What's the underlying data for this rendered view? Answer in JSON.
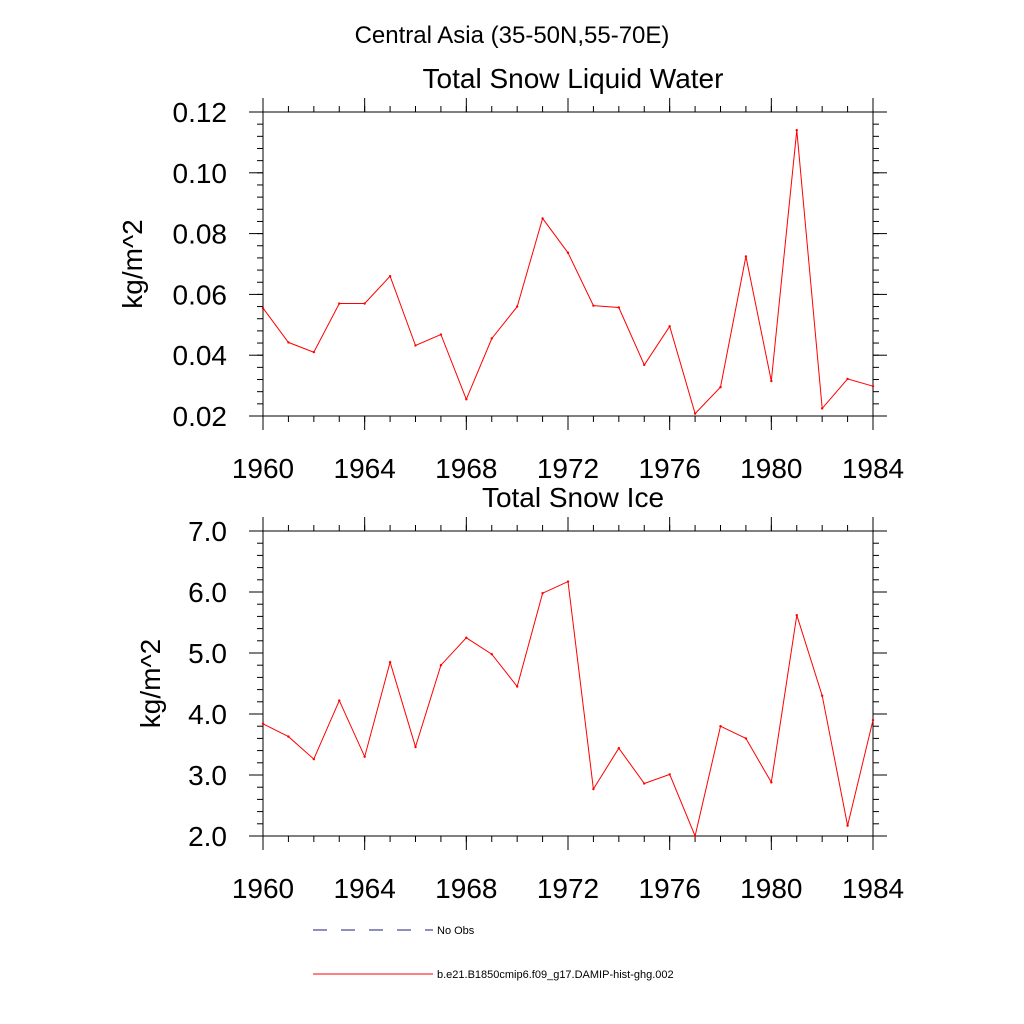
{
  "suptitle": "Central Asia (35-50N,55-70E)",
  "chart_data": [
    {
      "type": "line",
      "title": "Total Snow Liquid Water",
      "xlabel": "",
      "ylabel": "kg/m^2",
      "xlim": [
        1960,
        1984
      ],
      "ylim": [
        0.02,
        0.12
      ],
      "x_ticks": [
        1960,
        1964,
        1968,
        1972,
        1976,
        1980,
        1984
      ],
      "x_tick_labels": [
        "1960",
        "1964",
        "1968",
        "1972",
        "1976",
        "1980",
        "1984"
      ],
      "y_ticks": [
        0.02,
        0.04,
        0.06,
        0.08,
        0.1,
        0.12
      ],
      "y_tick_labels": [
        "0.02",
        "0.04",
        "0.06",
        "0.08",
        "0.10",
        "0.12"
      ],
      "x_minor_step": 1,
      "y_minor_step": 0.004,
      "x": [
        1960,
        1961,
        1962,
        1963,
        1964,
        1965,
        1966,
        1967,
        1968,
        1969,
        1970,
        1971,
        1972,
        1973,
        1974,
        1975,
        1976,
        1977,
        1978,
        1979,
        1980,
        1981,
        1982,
        1983,
        1984
      ],
      "series": [
        {
          "name": "b.e21.B1850cmip6.f09_g17.DAMIP-hist-ghg.002",
          "color": "#ff0000",
          "values": [
            0.0555,
            0.0442,
            0.041,
            0.057,
            0.057,
            0.066,
            0.0432,
            0.0468,
            0.0255,
            0.0455,
            0.056,
            0.085,
            0.0737,
            0.0563,
            0.0557,
            0.0368,
            0.0495,
            0.0208,
            0.0295,
            0.0725,
            0.0315,
            0.114,
            0.0225,
            0.0322,
            0.0298
          ]
        }
      ]
    },
    {
      "type": "line",
      "title": "Total Snow Ice",
      "xlabel": "",
      "ylabel": "kg/m^2",
      "xlim": [
        1960,
        1984
      ],
      "ylim": [
        2.0,
        7.0
      ],
      "x_ticks": [
        1960,
        1964,
        1968,
        1972,
        1976,
        1980,
        1984
      ],
      "x_tick_labels": [
        "1960",
        "1964",
        "1968",
        "1972",
        "1976",
        "1980",
        "1984"
      ],
      "y_ticks": [
        2.0,
        3.0,
        4.0,
        5.0,
        6.0,
        7.0
      ],
      "y_tick_labels": [
        "2.0",
        "3.0",
        "4.0",
        "5.0",
        "6.0",
        "7.0"
      ],
      "x_minor_step": 1,
      "y_minor_step": 0.2,
      "x": [
        1960,
        1961,
        1962,
        1963,
        1964,
        1965,
        1966,
        1967,
        1968,
        1969,
        1970,
        1971,
        1972,
        1973,
        1974,
        1975,
        1976,
        1977,
        1978,
        1979,
        1980,
        1981,
        1982,
        1983,
        1984
      ],
      "series": [
        {
          "name": "b.e21.B1850cmip6.f09_g17.DAMIP-hist-ghg.002",
          "color": "#ff0000",
          "values": [
            3.84,
            3.63,
            3.26,
            4.22,
            3.3,
            4.85,
            3.46,
            4.8,
            5.25,
            4.98,
            4.45,
            5.98,
            6.17,
            2.77,
            3.44,
            2.86,
            3.01,
            2.0,
            3.8,
            3.6,
            2.88,
            5.62,
            4.3,
            2.17,
            3.9
          ]
        }
      ]
    }
  ],
  "legend": [
    {
      "label": "No Obs",
      "color": "#1f1f7a",
      "dashed": true
    },
    {
      "label": "b.e21.B1850cmip6.f09_g17.DAMIP-hist-ghg.002",
      "color": "#ff0000",
      "dashed": false
    }
  ]
}
